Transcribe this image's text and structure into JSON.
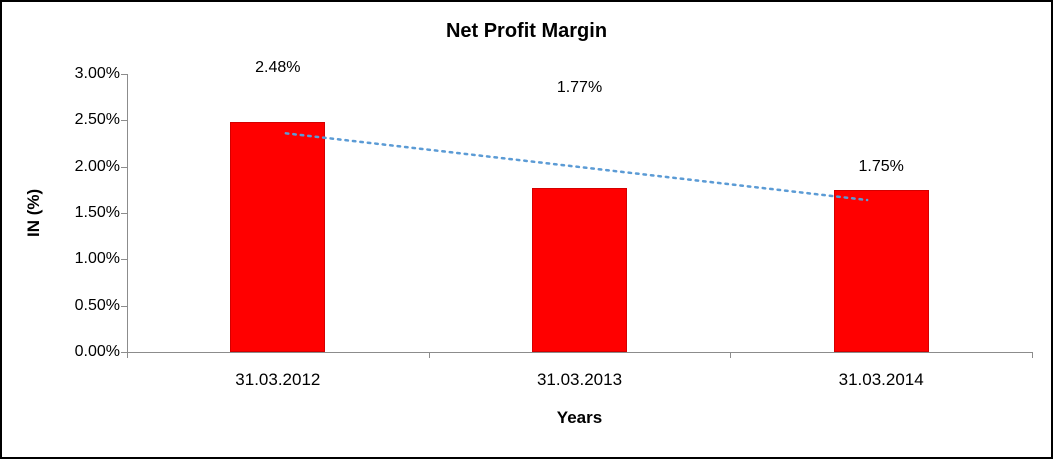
{
  "chart_data": {
    "type": "bar",
    "title": "Net Profit Margin",
    "categories": [
      "31.03.2012",
      "31.03.2013",
      "31.03.2014"
    ],
    "values": [
      2.48,
      1.77,
      1.75
    ],
    "value_labels": [
      "2.48%",
      "1.77%",
      "1.75%"
    ],
    "xlabel": "Years",
    "ylabel": "IN (%)",
    "ylim": [
      0,
      3
    ],
    "ytick_step": 0.5,
    "ytick_labels": [
      "0.00%",
      "0.50%",
      "1.00%",
      "1.50%",
      "2.00%",
      "2.50%",
      "3.00%"
    ],
    "bar_color": "#ff0000",
    "grid": false,
    "legend": "none",
    "trendline": {
      "style": "dotted",
      "color": "#5b9bd5",
      "start_value": 2.36,
      "end_value": 1.64
    }
  }
}
